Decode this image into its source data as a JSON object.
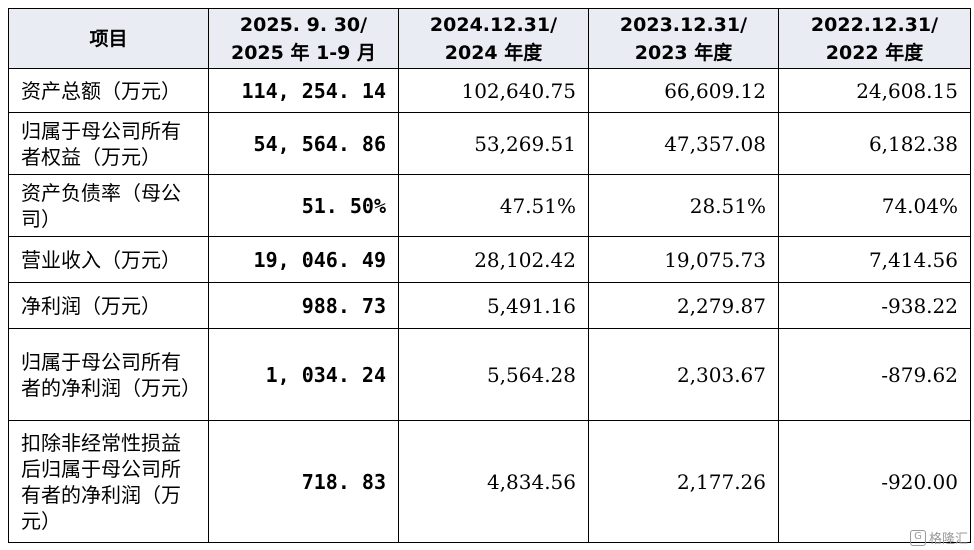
{
  "table": {
    "headers": [
      {
        "lines": [
          "项目"
        ]
      },
      {
        "lines": [
          "2025. 9. 30/",
          "2025 年 1-9 月"
        ]
      },
      {
        "lines": [
          "2024.12.31/",
          "2024 年度"
        ]
      },
      {
        "lines": [
          "2023.12.31/",
          "2023 年度"
        ]
      },
      {
        "lines": [
          "2022.12.31/",
          "2022 年度"
        ]
      }
    ],
    "rows": [
      {
        "label": "资产总额（万元）",
        "values": [
          "114, 254. 14",
          "102,640.75",
          "66,609.12",
          "24,608.15"
        ]
      },
      {
        "label": "归属于母公司所有者权益（万元）",
        "values": [
          "54, 564. 86",
          "53,269.51",
          "47,357.08",
          "6,182.38"
        ]
      },
      {
        "label": "资产负债率（母公司）",
        "values": [
          "51. 50%",
          "47.51%",
          "28.51%",
          "74.04%"
        ]
      },
      {
        "label": "营业收入（万元）",
        "values": [
          "19, 046. 49",
          "28,102.42",
          "19,075.73",
          "7,414.56"
        ]
      },
      {
        "label": "净利润（万元）",
        "values": [
          "988. 73",
          "5,491.16",
          "2,279.87",
          "-938.22"
        ]
      },
      {
        "label": "归属于母公司所有者的净利润（万元）",
        "values": [
          "1, 034. 24",
          "5,564.28",
          "2,303.67",
          "-879.62"
        ]
      },
      {
        "label": "扣除非经常性损益后归属于母公司所有者的净利润（万元）",
        "values": [
          "718. 83",
          "4,834.56",
          "2,177.26",
          "-920.00"
        ]
      }
    ]
  },
  "watermark": {
    "icon": "gelonghui-logo-icon",
    "text": "格隆汇"
  }
}
